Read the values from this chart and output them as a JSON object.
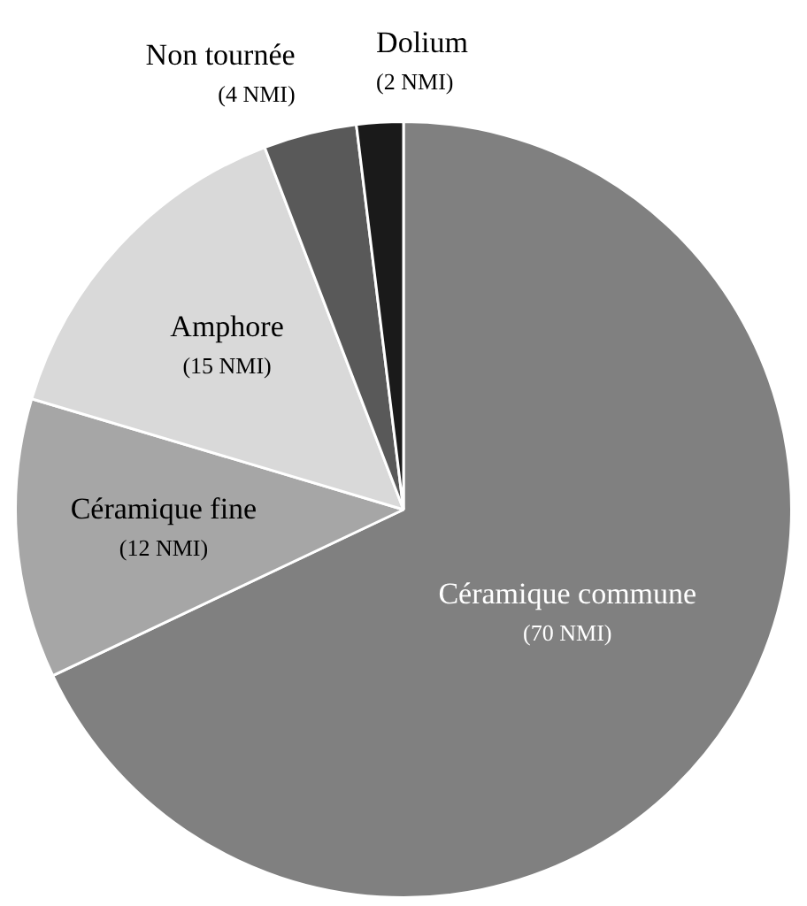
{
  "chart_data": {
    "type": "pie",
    "categories": [
      "Céramique commune",
      "Céramique fine",
      "Amphore",
      "Non tournée",
      "Dolium"
    ],
    "values": [
      70,
      12,
      15,
      4,
      2
    ],
    "colors": [
      "#808080",
      "#a6a6a6",
      "#d9d9d9",
      "#595959",
      "#1a1a1a"
    ],
    "value_labels": [
      "(70 NMI)",
      "(12 NMI)",
      "(15 NMI)",
      "(4 NMI)",
      "(2 NMI)"
    ],
    "legend": false
  }
}
